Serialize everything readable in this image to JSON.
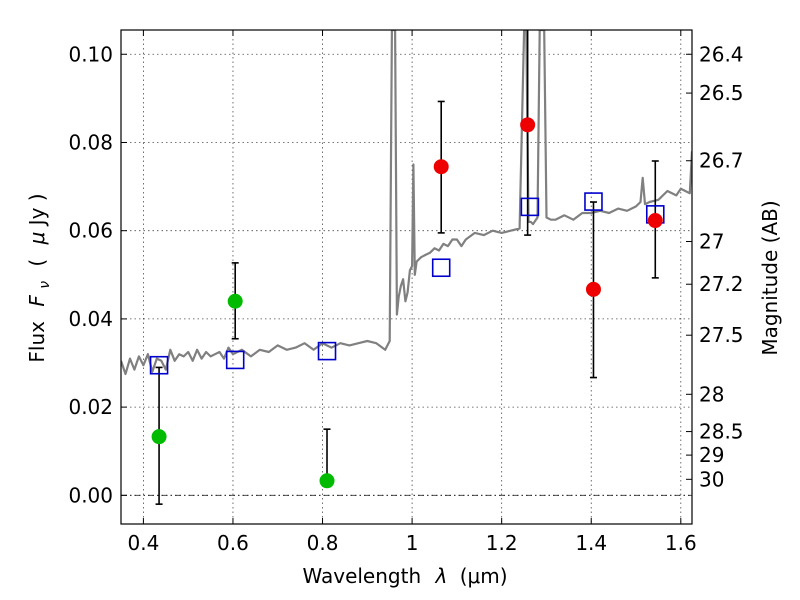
{
  "chart_data": {
    "type": "scatter",
    "xlabel_text": "Wavelength",
    "xlabel_symbol": "λ",
    "xlabel_unit": "(μm)",
    "ylabel_text": "Flux",
    "ylabel_symbol": "F",
    "ylabel_subscript": "ν",
    "ylabel_unit_open": "(",
    "ylabel_unit_mu": "μ",
    "ylabel_unit_rest": "Jy )",
    "y2label": "Magnitude (AB)",
    "xlim": [
      0.35,
      1.625
    ],
    "ylim": [
      -0.0065,
      0.1055
    ],
    "x_ticks": [
      0.4,
      0.6,
      0.8,
      1.0,
      1.2,
      1.4,
      1.6
    ],
    "x_tick_labels": [
      "0.4",
      "0.6",
      "0.8",
      "1",
      "1.2",
      "1.4",
      "1.6"
    ],
    "y_ticks": [
      0.0,
      0.02,
      0.04,
      0.06,
      0.08,
      0.1
    ],
    "y_tick_labels": [
      "0.00",
      "0.02",
      "0.04",
      "0.06",
      "0.08",
      "0.10"
    ],
    "mag_ticks": [
      26.4,
      26.5,
      26.7,
      27,
      27.2,
      27.5,
      28,
      28.5,
      29,
      30
    ],
    "mag_tick_labels": [
      "26.4",
      "26.5",
      "26.7",
      "27",
      "27.2",
      "27.5",
      "28",
      "28.5",
      "29",
      "30"
    ],
    "grid": true,
    "zero_line": 0.0,
    "colors": {
      "spectrum": "#808080",
      "green_points": "#00bb00",
      "red_points": "#ee0000",
      "model_squares": "#0000cc",
      "error_bars": "#000000"
    },
    "spectrum": {
      "name": "",
      "x": [
        0.35,
        0.36,
        0.37,
        0.38,
        0.39,
        0.4,
        0.41,
        0.42,
        0.43,
        0.44,
        0.45,
        0.46,
        0.47,
        0.48,
        0.49,
        0.5,
        0.51,
        0.52,
        0.53,
        0.54,
        0.55,
        0.56,
        0.57,
        0.58,
        0.59,
        0.6,
        0.61,
        0.62,
        0.64,
        0.66,
        0.68,
        0.7,
        0.72,
        0.74,
        0.76,
        0.78,
        0.8,
        0.82,
        0.84,
        0.86,
        0.88,
        0.9,
        0.92,
        0.94,
        0.95,
        0.955,
        0.958,
        0.962,
        0.966,
        0.97,
        0.975,
        0.98,
        0.985,
        0.99,
        0.995,
        1.0,
        1.003,
        1.006,
        1.01,
        1.02,
        1.03,
        1.04,
        1.05,
        1.06,
        1.07,
        1.08,
        1.09,
        1.1,
        1.11,
        1.12,
        1.14,
        1.16,
        1.18,
        1.2,
        1.22,
        1.24,
        1.25,
        1.255,
        1.26,
        1.265,
        1.27,
        1.28,
        1.285,
        1.29,
        1.295,
        1.3,
        1.31,
        1.32,
        1.34,
        1.36,
        1.38,
        1.4,
        1.42,
        1.44,
        1.46,
        1.48,
        1.5,
        1.51,
        1.515,
        1.52,
        1.53,
        1.55,
        1.57,
        1.59,
        1.6,
        1.61,
        1.62,
        1.625
      ],
      "y": [
        0.0305,
        0.0275,
        0.031,
        0.0285,
        0.0315,
        0.0295,
        0.032,
        0.028,
        0.031,
        0.0305,
        0.0285,
        0.033,
        0.0305,
        0.032,
        0.0315,
        0.0325,
        0.0305,
        0.033,
        0.031,
        0.0325,
        0.0315,
        0.032,
        0.0325,
        0.031,
        0.0335,
        0.032,
        0.0325,
        0.033,
        0.0315,
        0.033,
        0.0325,
        0.034,
        0.033,
        0.0335,
        0.0345,
        0.033,
        0.0345,
        0.0335,
        0.0345,
        0.034,
        0.0345,
        0.035,
        0.0345,
        0.033,
        0.035,
        0.1055,
        0.1055,
        0.1055,
        0.041,
        0.045,
        0.0475,
        0.049,
        0.044,
        0.046,
        0.051,
        0.052,
        0.075,
        0.05,
        0.053,
        0.054,
        0.0545,
        0.055,
        0.056,
        0.0555,
        0.057,
        0.0565,
        0.058,
        0.058,
        0.0565,
        0.058,
        0.0595,
        0.059,
        0.06,
        0.0595,
        0.06,
        0.0605,
        0.1055,
        0.1055,
        0.062,
        0.062,
        0.0615,
        0.063,
        0.1055,
        0.1055,
        0.1055,
        0.063,
        0.0625,
        0.0625,
        0.0635,
        0.0625,
        0.064,
        0.064,
        0.0645,
        0.064,
        0.065,
        0.0645,
        0.0655,
        0.0665,
        0.072,
        0.066,
        0.0665,
        0.067,
        0.069,
        0.068,
        0.0695,
        0.069,
        0.0685,
        0.078
      ]
    },
    "green_points": {
      "name": "",
      "x": [
        0.435,
        0.605,
        0.81
      ],
      "y": [
        0.0133,
        0.044,
        0.0033
      ],
      "err_low": [
        0.0153,
        0.0085,
        0.0
      ],
      "err_high": [
        0.0157,
        0.0087,
        0.0117
      ]
    },
    "red_points": {
      "name": "",
      "x": [
        1.065,
        1.258,
        1.405,
        1.543
      ],
      "y": [
        0.0745,
        0.084,
        0.0467,
        0.0623
      ],
      "err_low": [
        0.015,
        0.025,
        0.02,
        0.013
      ],
      "err_high": [
        0.0148,
        0.0215,
        0.0198,
        0.0135
      ]
    },
    "model_squares": {
      "name": "",
      "x": [
        0.435,
        0.605,
        0.81,
        1.065,
        1.263,
        1.405,
        1.543
      ],
      "y": [
        0.0295,
        0.0307,
        0.0327,
        0.0516,
        0.0654,
        0.0666,
        0.0637
      ]
    }
  }
}
